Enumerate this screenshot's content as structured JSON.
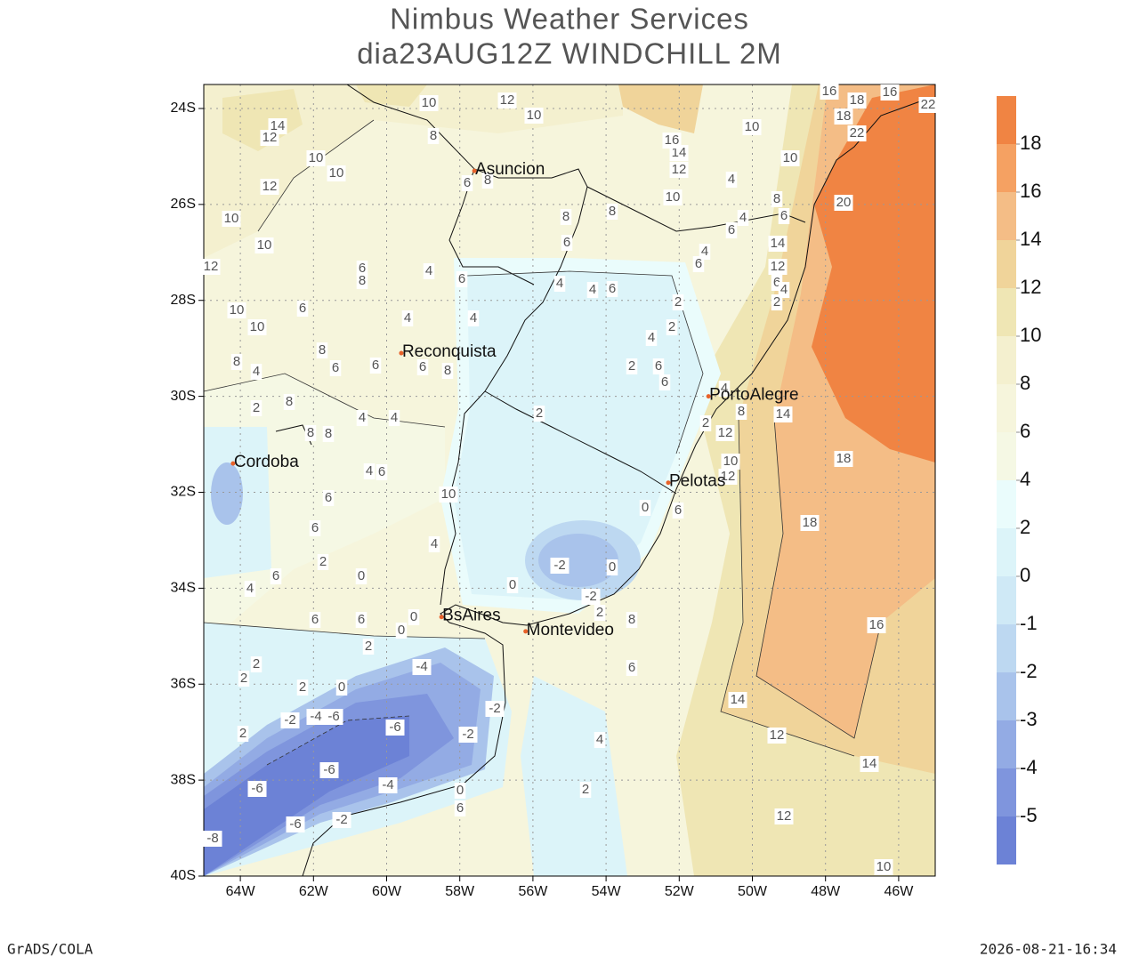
{
  "title": [
    "Nimbus Weather Services",
    "dia23AUG12Z WINDCHILL 2M"
  ],
  "map": {
    "lonlim": [
      -65,
      -45
    ],
    "latlim": [
      -40,
      -23.5
    ],
    "xticks": [
      {
        "value": -64,
        "label": "64W"
      },
      {
        "value": -62,
        "label": "62W"
      },
      {
        "value": -60,
        "label": "60W"
      },
      {
        "value": -58,
        "label": "58W"
      },
      {
        "value": -56,
        "label": "56W"
      },
      {
        "value": -54,
        "label": "54W"
      },
      {
        "value": -52,
        "label": "52W"
      },
      {
        "value": -50,
        "label": "50W"
      },
      {
        "value": -48,
        "label": "48W"
      },
      {
        "value": -46,
        "label": "46W"
      }
    ],
    "yticks": [
      {
        "value": -24,
        "label": "24S"
      },
      {
        "value": -26,
        "label": "26S"
      },
      {
        "value": -28,
        "label": "28S"
      },
      {
        "value": -30,
        "label": "30S"
      },
      {
        "value": -32,
        "label": "32S"
      },
      {
        "value": -34,
        "label": "34S"
      },
      {
        "value": -36,
        "label": "36S"
      },
      {
        "value": -38,
        "label": "38S"
      },
      {
        "value": -40,
        "label": "40S"
      }
    ],
    "cities": [
      {
        "name": "Asuncion",
        "lon": -57.6,
        "lat": -25.3
      },
      {
        "name": "Reconquista",
        "lon": -59.6,
        "lat": -29.1
      },
      {
        "name": "Cordoba",
        "lon": -64.2,
        "lat": -31.4
      },
      {
        "name": "PortoAlegre",
        "lon": -51.2,
        "lat": -30.0
      },
      {
        "name": "Pelotas",
        "lon": -52.3,
        "lat": -31.8
      },
      {
        "name": "BsAires",
        "lon": -58.5,
        "lat": -34.6
      },
      {
        "name": "Montevideo",
        "lon": -56.2,
        "lat": -34.9
      }
    ]
  },
  "colorbar": {
    "levels": [
      -5,
      -4,
      -3,
      -2,
      -1,
      0,
      2,
      4,
      6,
      8,
      10,
      12,
      14,
      16,
      18
    ],
    "colors": [
      "#6c82d6",
      "#7f95dd",
      "#93abe4",
      "#a9c3eb",
      "#bdd8f1",
      "#cfe9f6",
      "#dcf4f9",
      "#eafcfc",
      "#f5f8e4",
      "#f6f5dc",
      "#f4f0cf",
      "#efe6b4",
      "#f0d49a",
      "#f4bd86",
      "#f5a162",
      "#f08443"
    ]
  },
  "contour_labels": [
    14,
    12,
    10,
    12,
    10,
    8,
    10,
    10,
    12,
    10,
    10,
    12,
    10,
    10,
    6,
    8,
    6,
    8,
    4,
    2,
    8,
    8,
    8,
    4,
    4,
    4,
    6,
    6,
    6,
    2,
    0,
    4,
    6,
    6,
    6,
    2,
    0,
    0,
    2,
    2,
    2,
    0,
    2,
    -2,
    -4,
    -6,
    -6,
    -4,
    -2,
    -2,
    -6,
    -6,
    -4,
    -6,
    -2,
    -8,
    0,
    6,
    2,
    4,
    6,
    8,
    2,
    -2,
    0,
    -2,
    0,
    0,
    6,
    2,
    2,
    2,
    4,
    2,
    6,
    6,
    4,
    6,
    4,
    6,
    8,
    8,
    6,
    8,
    10,
    12,
    14,
    16,
    10,
    10,
    8,
    6,
    4,
    6,
    4,
    4,
    6,
    14,
    12,
    6,
    4,
    2,
    20,
    16,
    18,
    18,
    22,
    16,
    22,
    14,
    18,
    18,
    16,
    14,
    12,
    14,
    12,
    10,
    8,
    12,
    10,
    12,
    4,
    2,
    4,
    4,
    4,
    6,
    6,
    8,
    6,
    8,
    6,
    4,
    10
  ],
  "footer": {
    "left": "GrADS/COLA",
    "right": "2026-08-21-16:34"
  }
}
